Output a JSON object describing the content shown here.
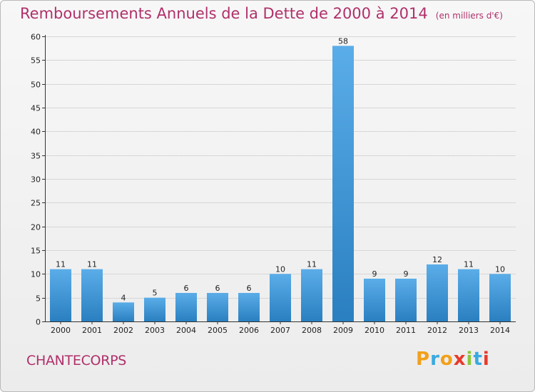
{
  "header": {
    "title": "Remboursements Annuels de la Dette de 2000 à 2014",
    "subtitle": "(en milliers d'€)"
  },
  "commune": "CHANTECORPS",
  "logo": {
    "text": "Proxiti",
    "letter_colors": [
      "#f2a01a",
      "#3aa9df",
      "#f2a01a",
      "#e8392b",
      "#8cc63e",
      "#3aa9df",
      "#e8392b"
    ]
  },
  "chart_data": {
    "type": "bar",
    "title": "Remboursements Annuels de la Dette de 2000 à 2014",
    "subtitle": "(en milliers d'€)",
    "categories": [
      "2000",
      "2001",
      "2002",
      "2003",
      "2004",
      "2005",
      "2006",
      "2007",
      "2008",
      "2009",
      "2010",
      "2011",
      "2012",
      "2013",
      "2014"
    ],
    "values": [
      11,
      11,
      4,
      5,
      6,
      6,
      6,
      10,
      11,
      58,
      9,
      9,
      12,
      11,
      10
    ],
    "ylim": [
      0,
      60
    ],
    "yticks": [
      0,
      5,
      10,
      15,
      20,
      25,
      30,
      35,
      40,
      45,
      50,
      55,
      60
    ],
    "grid": true,
    "legend": "none",
    "bar_color_top": "#5aade8",
    "bar_color_bottom": "#2a7fc0"
  }
}
